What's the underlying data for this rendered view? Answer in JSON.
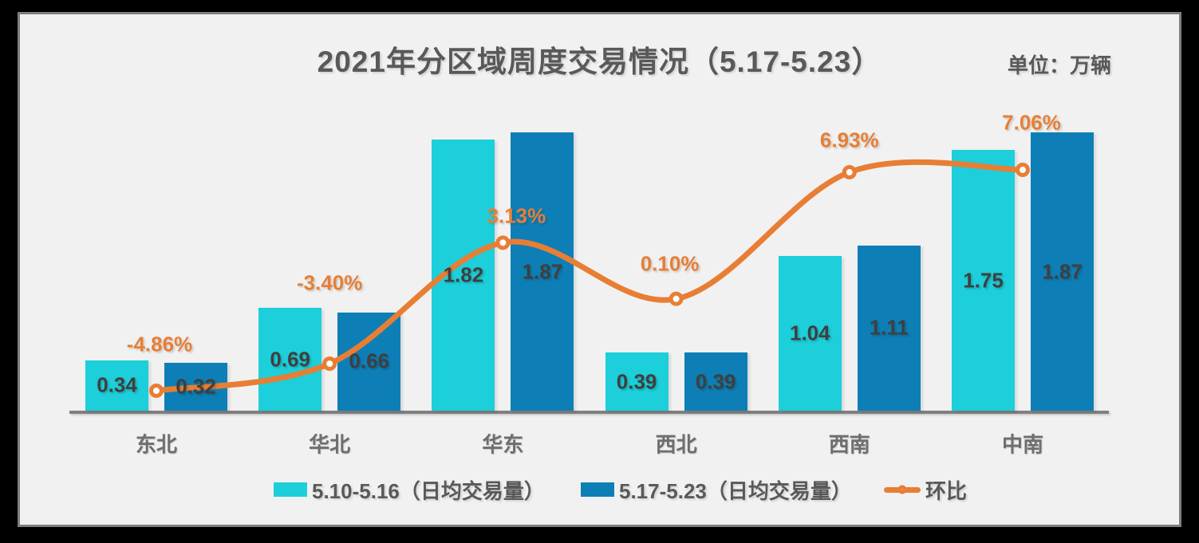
{
  "chart_data": {
    "type": "bar",
    "title": "2021年分区域周度交易情况（5.17-5.23）",
    "unit": "单位：万辆",
    "categories": [
      "东北",
      "华北",
      "华东",
      "西北",
      "西南",
      "中南"
    ],
    "series": [
      {
        "name": "5.10-5.16（日均交易量）",
        "type": "bar",
        "color": "#1CCFDA",
        "values": [
          0.34,
          0.69,
          1.82,
          0.39,
          1.04,
          1.75
        ],
        "labels": [
          "0.34",
          "0.69",
          "1.82",
          "0.39",
          "1.04",
          "1.75"
        ]
      },
      {
        "name": "5.17-5.23（日均交易量）",
        "type": "bar",
        "color": "#0E7FB6",
        "values": [
          0.32,
          0.66,
          1.87,
          0.39,
          1.11,
          1.87
        ],
        "labels": [
          "0.32",
          "0.66",
          "1.87",
          "0.39",
          "1.11",
          "1.87"
        ]
      },
      {
        "name": "环比",
        "type": "line",
        "color": "#E87E34",
        "values": [
          -4.86,
          -3.4,
          3.13,
          0.1,
          6.93,
          7.06
        ],
        "labels": [
          "-4.86%",
          "-3.40%",
          "3.13%",
          "0.10%",
          "6.93%",
          "7.06%"
        ]
      }
    ],
    "ylim": [
      0,
      2.3
    ],
    "grid": false,
    "legend_position": "bottom",
    "background": "#F1F1F1",
    "axis_color": "#808080",
    "value_label_color": "#3F3F3F",
    "category_label_color": "#6E6E6E",
    "text_color": "#595959"
  }
}
